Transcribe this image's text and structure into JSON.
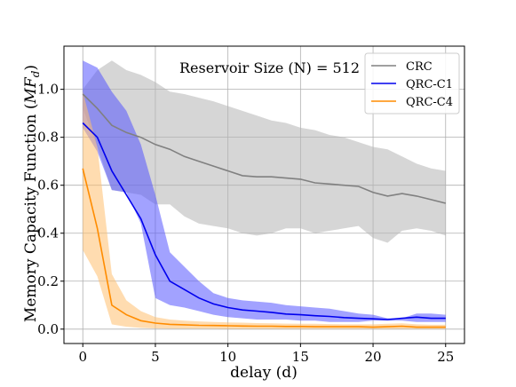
{
  "chart_data": {
    "type": "line",
    "title": "",
    "annotation": "Reservoir Size (N) = 512",
    "xlabel": "delay (d)",
    "ylabel": "Memory Capacity Function (MF_d)",
    "xlim": [
      -1.3,
      26.3
    ],
    "ylim": [
      -0.06,
      1.18
    ],
    "xticks": [
      0,
      5,
      10,
      15,
      20,
      25
    ],
    "xtick_labels": [
      "0",
      "5",
      "10",
      "15",
      "20",
      "25"
    ],
    "yticks": [
      0.0,
      0.2,
      0.4,
      0.6,
      0.8,
      1.0
    ],
    "ytick_labels": [
      "0.0",
      "0.2",
      "0.4",
      "0.6",
      "0.8",
      "1.0"
    ],
    "grid": true,
    "legend_position": "top-right",
    "x": [
      0,
      1,
      2,
      3,
      4,
      5,
      6,
      7,
      8,
      9,
      10,
      11,
      12,
      13,
      14,
      15,
      16,
      17,
      18,
      19,
      20,
      21,
      22,
      23,
      24,
      25
    ],
    "series": [
      {
        "name": "CRC",
        "color": "#808080",
        "band_color": "#b4b4b4",
        "mean": [
          0.98,
          0.92,
          0.85,
          0.82,
          0.8,
          0.77,
          0.75,
          0.72,
          0.7,
          0.68,
          0.66,
          0.64,
          0.635,
          0.635,
          0.63,
          0.625,
          0.61,
          0.605,
          0.6,
          0.595,
          0.57,
          0.555,
          0.565,
          0.555,
          0.54,
          0.525
        ],
        "upper": [
          1.0,
          1.08,
          1.12,
          1.08,
          1.06,
          1.03,
          0.99,
          0.98,
          0.965,
          0.95,
          0.93,
          0.91,
          0.89,
          0.87,
          0.86,
          0.84,
          0.83,
          0.81,
          0.8,
          0.78,
          0.76,
          0.75,
          0.72,
          0.69,
          0.67,
          0.66
        ],
        "lower": [
          0.92,
          0.76,
          0.58,
          0.57,
          0.56,
          0.52,
          0.52,
          0.47,
          0.44,
          0.43,
          0.42,
          0.4,
          0.39,
          0.4,
          0.42,
          0.42,
          0.4,
          0.41,
          0.42,
          0.43,
          0.38,
          0.36,
          0.41,
          0.42,
          0.41,
          0.39
        ]
      },
      {
        "name": "QRC-C1",
        "color": "#0000ee",
        "band_color": "#5555ff",
        "mean": [
          0.86,
          0.8,
          0.66,
          0.56,
          0.46,
          0.31,
          0.2,
          0.165,
          0.13,
          0.105,
          0.09,
          0.08,
          0.075,
          0.07,
          0.063,
          0.06,
          0.056,
          0.053,
          0.048,
          0.045,
          0.043,
          0.04,
          0.045,
          0.05,
          0.045,
          0.045
        ],
        "upper": [
          1.12,
          1.09,
          0.99,
          0.91,
          0.77,
          0.56,
          0.32,
          0.26,
          0.2,
          0.15,
          0.13,
          0.12,
          0.115,
          0.11,
          0.1,
          0.095,
          0.09,
          0.085,
          0.075,
          0.065,
          0.06,
          0.045,
          0.045,
          0.065,
          0.065,
          0.06
        ],
        "lower": [
          0.84,
          0.74,
          0.58,
          0.57,
          0.44,
          0.13,
          0.1,
          0.09,
          0.075,
          0.06,
          0.05,
          0.045,
          0.04,
          0.04,
          0.04,
          0.035,
          0.035,
          0.03,
          0.03,
          0.03,
          0.035,
          0.035,
          0.035,
          0.03,
          0.03,
          0.03
        ]
      },
      {
        "name": "QRC-C4",
        "color": "#ff8c00",
        "band_color": "#ffc070",
        "mean": [
          0.67,
          0.42,
          0.1,
          0.06,
          0.035,
          0.025,
          0.02,
          0.018,
          0.016,
          0.015,
          0.014,
          0.013,
          0.012,
          0.012,
          0.011,
          0.011,
          0.01,
          0.01,
          0.01,
          0.01,
          0.008,
          0.01,
          0.012,
          0.008,
          0.008,
          0.008
        ],
        "upper": [
          0.99,
          0.76,
          0.23,
          0.12,
          0.075,
          0.05,
          0.04,
          0.035,
          0.032,
          0.03,
          0.028,
          0.027,
          0.025,
          0.024,
          0.023,
          0.022,
          0.022,
          0.021,
          0.02,
          0.02,
          0.02,
          0.022,
          0.024,
          0.02,
          0.018,
          0.018
        ],
        "lower": [
          0.33,
          0.22,
          0.02,
          0.01,
          0.005,
          0.003,
          0.002,
          0.002,
          0.002,
          0.002,
          0.001,
          0.001,
          0.001,
          0.001,
          0.001,
          0.001,
          0.001,
          0.001,
          0.001,
          0.001,
          0.001,
          0.001,
          0.001,
          0.001,
          0.001,
          0.001
        ]
      }
    ]
  }
}
